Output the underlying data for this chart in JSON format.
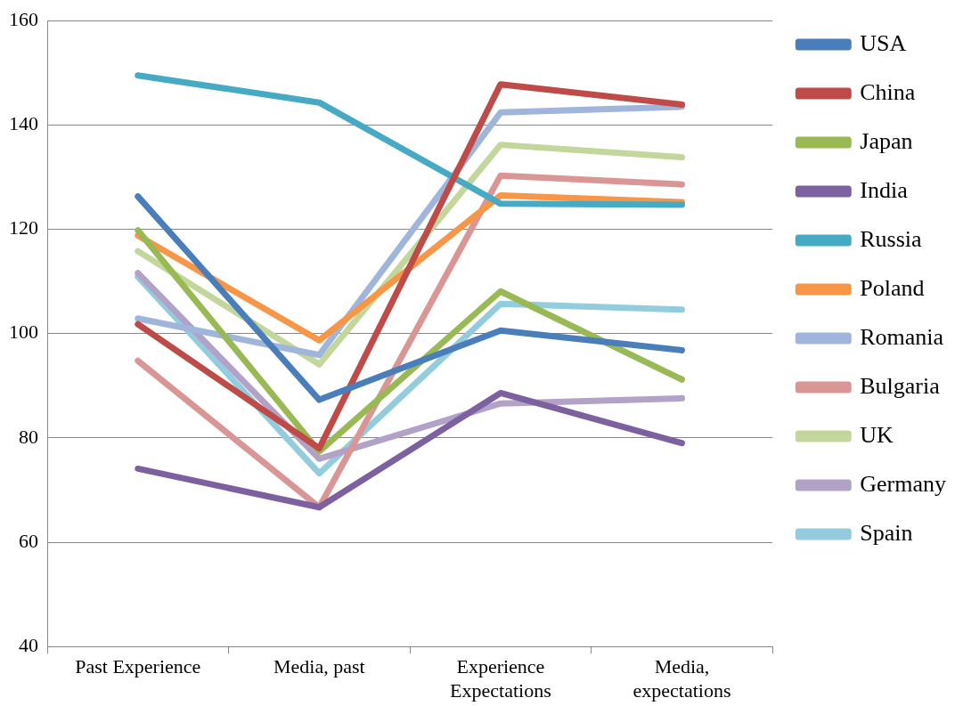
{
  "chart_data": {
    "type": "line",
    "categories": [
      "Past Experience",
      "Media, past",
      "Experience Expectations",
      "Media, expectations"
    ],
    "ylim": [
      40,
      160
    ],
    "yticks": [
      40,
      60,
      80,
      100,
      120,
      140,
      160
    ],
    "grid": "y",
    "legend": "right",
    "marker": "none",
    "line_style": "solid",
    "series": [
      {
        "name": "USA",
        "color": "#4a7ebb",
        "values": [
          126.3,
          87.3,
          100.6,
          96.8
        ]
      },
      {
        "name": "China",
        "color": "#be4b48",
        "values": [
          101.8,
          78,
          147.8,
          143.9
        ]
      },
      {
        "name": "Japan",
        "color": "#98b954",
        "values": [
          119.8,
          77.4,
          108.1,
          91.2
        ]
      },
      {
        "name": "India",
        "color": "#7d60a0",
        "values": [
          74.1,
          66.7,
          88.6,
          79
        ]
      },
      {
        "name": "Russia",
        "color": "#46aac5",
        "values": [
          149.5,
          144.3,
          124.9,
          124.7
        ]
      },
      {
        "name": "Poland",
        "color": "#f79646",
        "values": [
          118.8,
          98.7,
          126.5,
          125.2
        ]
      },
      {
        "name": "Romania",
        "color": "#a0b5db",
        "values": [
          102.9,
          95.9,
          142.4,
          143.5
        ]
      },
      {
        "name": "Bulgaria",
        "color": "#d99694",
        "values": [
          94.8,
          66.7,
          130.3,
          128.6
        ]
      },
      {
        "name": "UK",
        "color": "#c3d69b",
        "values": [
          115.8,
          94.1,
          136.2,
          133.8
        ]
      },
      {
        "name": "Germany",
        "color": "#b3a2c7",
        "values": [
          111.6,
          76,
          86.6,
          87.6
        ]
      },
      {
        "name": "Spain",
        "color": "#93cddd",
        "values": [
          110.9,
          73.2,
          105.7,
          104.6
        ]
      }
    ]
  }
}
